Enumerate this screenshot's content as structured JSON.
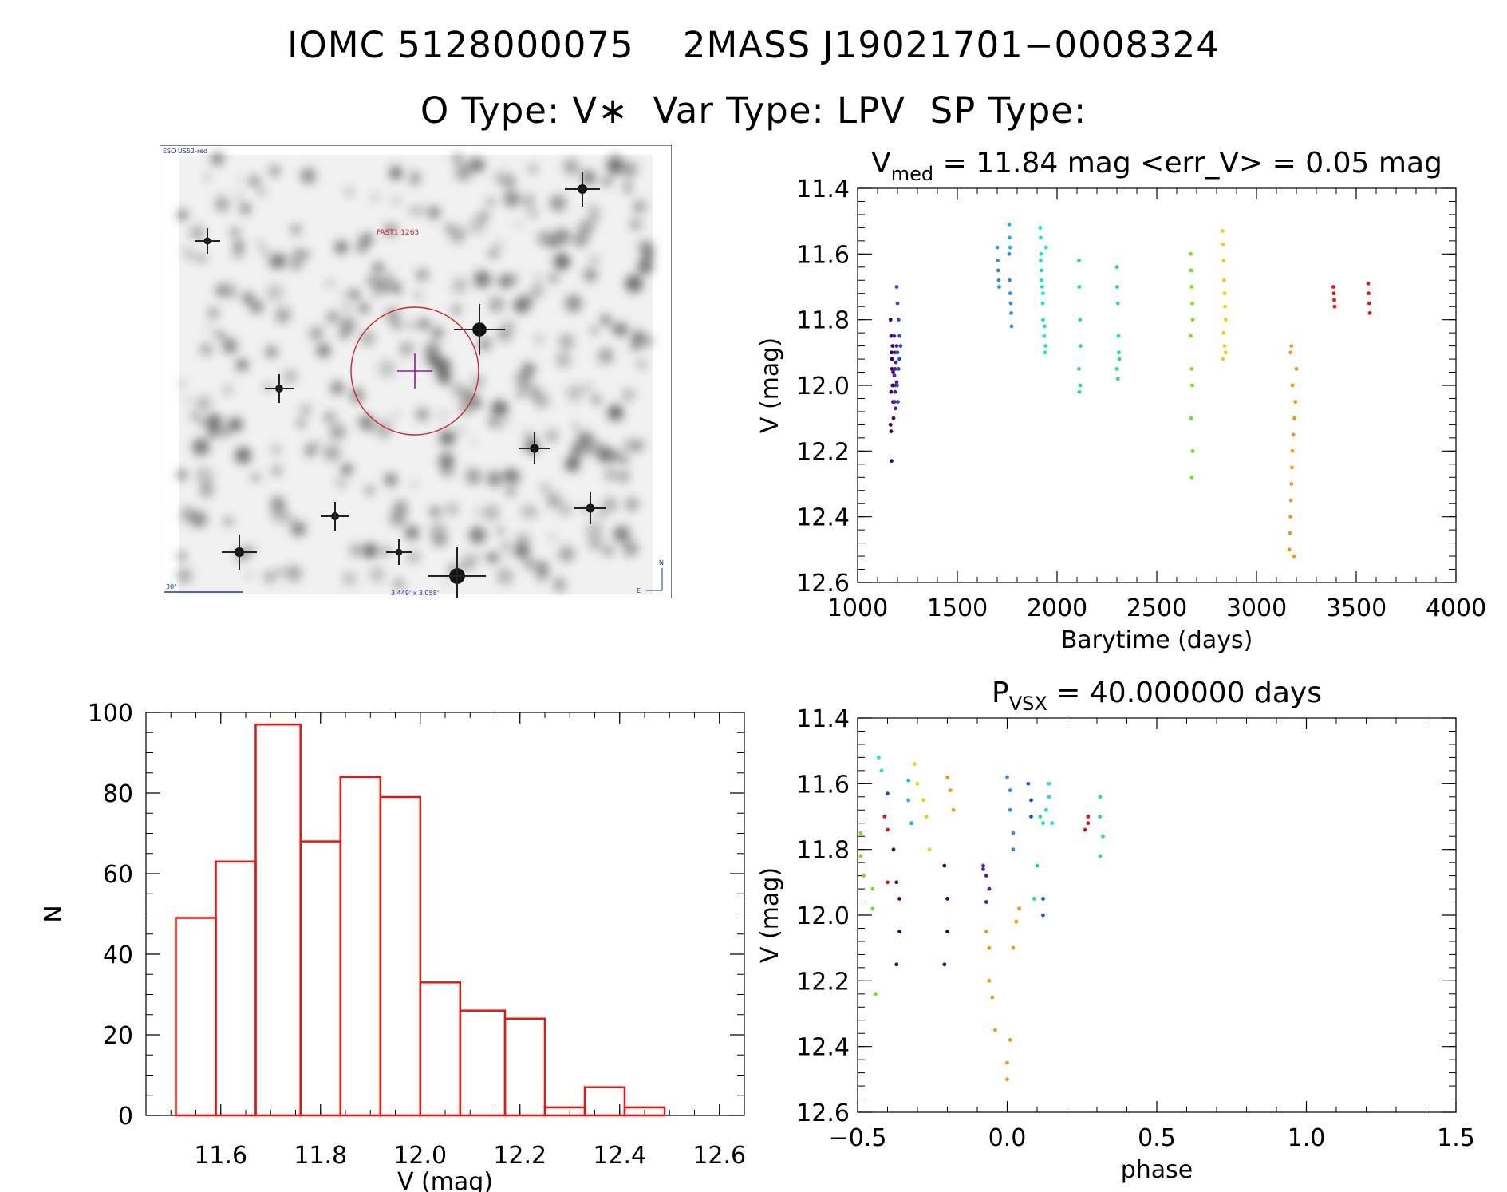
{
  "header": {
    "line1": "IOMC 5128000075    2MASS J19021701−0008324",
    "line2": "O Type: V∗  Var Type: LPV  SP Type:"
  },
  "finder": {
    "survey_label": "ESO US52-red",
    "object_label": "FAST1 1263",
    "scale_label": "30\"",
    "fov_label": "3.449' x 3.058'",
    "north_label": "N",
    "east_label": "E"
  },
  "colors": {
    "histogram": "#e8140f",
    "finder_circle": "#c8282d",
    "marker": "#8a1aa8",
    "finder_text_blue": "#22309e",
    "seasons": [
      "#3b0a5e",
      "#5a1aa0",
      "#1f4fd8",
      "#2e8ff0",
      "#14b4f0",
      "#19e6c8",
      "#20e08a",
      "#74e21a",
      "#e6d50e",
      "#f59a10",
      "#f0600e",
      "#e8140f"
    ]
  },
  "chart_data": [
    {
      "type": "scatter",
      "id": "light_curve",
      "title_main": "V",
      "title_sub": "med",
      "title_rest": " = 11.84 mag <err_V> = 0.05 mag",
      "xlabel": "Barytime (days)",
      "ylabel": "V (mag)",
      "xlim": [
        1000,
        4000
      ],
      "ylim": [
        11.4,
        12.6
      ],
      "y_inverted": true,
      "xticks": [
        "1000",
        "1500",
        "2000",
        "2500",
        "3000",
        "3500",
        "4000"
      ],
      "yticks": [
        "11.4",
        "11.6",
        "11.8",
        "12.0",
        "12.2",
        "12.4",
        "12.6"
      ],
      "series": [
        {
          "color": "#3b0a5e",
          "x": [
            1165,
            1168,
            1170,
            1172,
            1175,
            1178,
            1180,
            1165,
            1168,
            1172,
            1175,
            1178,
            1170,
            1168
          ],
          "y": [
            11.8,
            11.85,
            11.9,
            11.95,
            12.0,
            12.05,
            12.1,
            12.12,
            12.14,
            11.92,
            11.88,
            11.96,
            12.23,
            12.02
          ]
        },
        {
          "color": "#5a1aa0",
          "x": [
            1183,
            1186,
            1188,
            1190,
            1185,
            1190,
            1195,
            1192,
            1188,
            1184,
            1196
          ],
          "y": [
            11.85,
            11.9,
            11.95,
            12.0,
            12.05,
            12.07,
            11.88,
            11.93,
            12.02,
            11.97,
            11.99
          ]
        },
        {
          "color": "#1f4fd8",
          "x": [
            1196,
            1200,
            1205,
            1210,
            1200,
            1205,
            1198,
            1202,
            1215,
            1210
          ],
          "y": [
            11.7,
            11.75,
            11.8,
            11.85,
            11.9,
            11.95,
            12.0,
            12.05,
            11.88,
            11.92
          ]
        },
        {
          "color": "#2e8ff0",
          "x": [
            1700,
            1702,
            1705,
            1708,
            1710,
            1760,
            1762,
            1765,
            1768,
            1770,
            1772
          ],
          "y": [
            11.58,
            11.62,
            11.65,
            11.68,
            11.7,
            11.6,
            11.68,
            11.72,
            11.75,
            11.78,
            11.82
          ]
        },
        {
          "color": "#14b4f0",
          "x": [
            1760,
            1762,
            1765
          ],
          "y": [
            11.51,
            11.55,
            11.58
          ]
        },
        {
          "color": "#19e6c8",
          "x": [
            1915,
            1918,
            1920,
            1922,
            1925,
            1928,
            1930,
            1935,
            1940,
            1945,
            1918,
            1922,
            1930,
            1938,
            1942
          ],
          "y": [
            11.52,
            11.55,
            11.6,
            11.65,
            11.7,
            11.75,
            11.8,
            11.85,
            11.9,
            11.58,
            11.62,
            11.68,
            11.72,
            11.82,
            11.88
          ]
        },
        {
          "color": "#20e08a",
          "x": [
            2110,
            2112,
            2115,
            2118,
            2110,
            2115,
            2112,
            2300,
            2302,
            2305,
            2308,
            2310,
            2300,
            2305,
            2312
          ],
          "y": [
            11.62,
            11.7,
            11.8,
            11.88,
            11.95,
            12.0,
            12.02,
            11.64,
            11.7,
            11.75,
            11.85,
            11.9,
            11.95,
            11.98,
            11.92
          ]
        },
        {
          "color": "#74e21a",
          "x": [
            2670,
            2672,
            2675,
            2678,
            2680,
            2670,
            2675,
            2678,
            2672,
            2680,
            2676
          ],
          "y": [
            11.6,
            11.65,
            11.7,
            11.75,
            11.8,
            11.85,
            11.95,
            12.0,
            12.1,
            12.2,
            12.28
          ]
        },
        {
          "color": "#e6d50e",
          "x": [
            2830,
            2832,
            2835,
            2838,
            2840,
            2842,
            2845,
            2835,
            2840,
            2845,
            2832
          ],
          "y": [
            11.53,
            11.57,
            11.62,
            11.68,
            11.72,
            11.76,
            11.8,
            11.84,
            11.88,
            11.9,
            11.92
          ]
        },
        {
          "color": "#f59a10",
          "x": [
            3165,
            3168,
            3170,
            3172,
            3175,
            3178,
            3180,
            3185,
            3190,
            3195,
            3200,
            3170,
            3175,
            3180,
            3188
          ],
          "y": [
            12.5,
            12.45,
            12.4,
            12.35,
            12.3,
            12.25,
            12.2,
            12.15,
            12.1,
            12.05,
            11.95,
            11.9,
            11.88,
            12.0,
            12.52
          ]
        },
        {
          "color": "#e8140f",
          "x": [
            3385,
            3388,
            3390,
            3392,
            3560,
            3562,
            3565,
            3568
          ],
          "y": [
            11.7,
            11.72,
            11.74,
            11.76,
            11.69,
            11.72,
            11.75,
            11.78
          ]
        }
      ]
    },
    {
      "type": "scatter",
      "id": "phase_plot",
      "title_main": "P",
      "title_sub": "VSX",
      "title_rest": " = 40.000000 days",
      "xlabel": "phase",
      "ylabel": "V (mag)",
      "xlim": [
        -0.5,
        1.5
      ],
      "ylim": [
        11.4,
        12.6
      ],
      "y_inverted": true,
      "period_days": 40.0,
      "xticks": [
        "−0.5",
        "0.0",
        "0.5",
        "1.0",
        "1.5"
      ],
      "yticks": [
        "11.4",
        "11.6",
        "11.8",
        "12.0",
        "12.2",
        "12.4",
        "12.6"
      ],
      "series": [
        {
          "color": "#3b0a5e",
          "x": [
            -0.38,
            -0.37,
            -0.36,
            -0.36,
            -0.37,
            -0.21,
            -0.2,
            -0.2,
            -0.21
          ],
          "y": [
            11.8,
            11.9,
            11.95,
            12.05,
            12.15,
            11.85,
            11.95,
            12.05,
            12.15
          ]
        },
        {
          "color": "#5a1aa0",
          "x": [
            -0.08,
            -0.07,
            -0.06,
            -0.07,
            -0.08
          ],
          "y": [
            11.85,
            11.88,
            11.92,
            11.96,
            11.86
          ]
        },
        {
          "color": "#1f4fd8",
          "x": [
            0.07,
            0.08,
            0.08,
            0.12,
            0.12,
            -0.4
          ],
          "y": [
            11.6,
            11.65,
            11.7,
            11.95,
            12.0,
            11.63
          ]
        },
        {
          "color": "#2e8ff0",
          "x": [
            0.0,
            0.01,
            0.01,
            0.02,
            0.02
          ],
          "y": [
            11.58,
            11.62,
            11.68,
            11.75,
            11.8
          ]
        },
        {
          "color": "#14b4f0",
          "x": [
            -0.33,
            -0.33,
            -0.32
          ],
          "y": [
            11.59,
            11.65,
            11.72
          ]
        },
        {
          "color": "#19e6c8",
          "x": [
            -0.43,
            -0.42,
            0.14,
            0.14,
            0.13,
            0.15
          ],
          "y": [
            11.52,
            11.56,
            11.6,
            11.64,
            11.68,
            11.72
          ]
        },
        {
          "color": "#20e08a",
          "x": [
            0.11,
            0.12,
            0.1,
            0.09,
            0.31,
            0.31,
            0.32,
            0.31
          ],
          "y": [
            11.7,
            11.72,
            11.85,
            11.95,
            11.64,
            11.7,
            11.76,
            11.82
          ]
        },
        {
          "color": "#74e21a",
          "x": [
            -0.49,
            -0.49,
            -0.48,
            -0.45,
            -0.45,
            -0.44
          ],
          "y": [
            11.75,
            11.82,
            11.88,
            11.92,
            11.98,
            12.24
          ]
        },
        {
          "color": "#e6d50e",
          "x": [
            -0.31,
            -0.3,
            -0.28,
            -0.27,
            -0.26
          ],
          "y": [
            11.54,
            11.6,
            11.65,
            11.7,
            11.8
          ]
        },
        {
          "color": "#f59a10",
          "x": [
            -0.2,
            -0.19,
            -0.18,
            -0.07,
            -0.06,
            -0.06,
            -0.05,
            -0.04,
            0.0,
            0.0,
            0.01,
            0.02,
            0.03,
            0.04
          ],
          "y": [
            11.58,
            11.62,
            11.68,
            12.05,
            12.1,
            12.2,
            12.25,
            12.35,
            12.45,
            12.5,
            12.38,
            12.1,
            12.02,
            11.98
          ]
        },
        {
          "color": "#e8140f",
          "x": [
            -0.41,
            -0.4,
            -0.4,
            0.27,
            0.27,
            0.26
          ],
          "y": [
            11.7,
            11.74,
            11.9,
            11.7,
            11.72,
            11.74
          ]
        }
      ]
    },
    {
      "type": "bar",
      "id": "histogram",
      "xlabel": "V (mag)",
      "ylabel": "N",
      "xlim": [
        11.45,
        12.65
      ],
      "ylim": [
        0,
        100
      ],
      "xticks": [
        "11.6",
        "11.8",
        "12.0",
        "12.2",
        "12.4",
        "12.6"
      ],
      "yticks": [
        "0",
        "20",
        "40",
        "60",
        "80",
        "100"
      ],
      "bin_edges": [
        11.51,
        11.59,
        11.67,
        11.76,
        11.84,
        11.92,
        12.0,
        12.08,
        12.17,
        12.25,
        12.33,
        12.41,
        12.49
      ],
      "values": [
        49,
        63,
        97,
        68,
        84,
        79,
        33,
        26,
        24,
        2,
        7,
        2
      ]
    }
  ]
}
